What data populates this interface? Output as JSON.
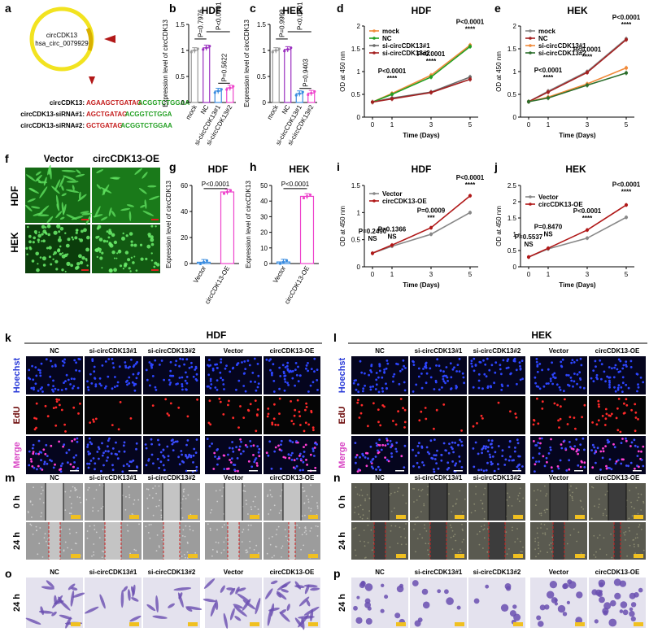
{
  "panels": {
    "a": {
      "label": "a",
      "circle_title": "circCDK13",
      "circle_id": "hsa_circ_0079929",
      "rows": [
        {
          "name": "circCDK13:",
          "seq_red": "AGAAGCTGATAG",
          "seq_green": "ACGGTCTGGAA"
        },
        {
          "name": "circCDK13-siRNA#1:",
          "seq_red": "AGCTGATAG",
          "seq_green": "ACGGTCTGGA"
        },
        {
          "name": "circCDK13-siRNA#2:",
          "seq_red": "GCTGATAG",
          "seq_green": "ACGGTCTGGAA"
        }
      ]
    },
    "b": {
      "label": "b",
      "title": "HDF",
      "ylabel": "Expression level of circCDK13",
      "pvals": [
        "P=0.7976",
        "P<0.0001",
        "P=0.5622"
      ]
    },
    "c": {
      "label": "c",
      "title": "HEK",
      "ylabel": "Expression level of circCDK13",
      "pvals": [
        "P=0.9999",
        "P<0.0001",
        "P=0.9403"
      ]
    },
    "d": {
      "label": "d",
      "title": "HDF",
      "ylabel": "OD at 450 nm",
      "xlabel": "Time (Days)",
      "annotations": [
        [
          "P<0.0001",
          "****"
        ],
        [
          "P<0.0001",
          "****"
        ],
        [
          "P<0.0001",
          "****"
        ]
      ]
    },
    "e": {
      "label": "e",
      "title": "HEK",
      "ylabel": "OD at 450 nm",
      "xlabel": "Time (Days)",
      "annotations": [
        [
          "P<0.0001",
          "****"
        ],
        [
          "P<0.0001",
          "****"
        ],
        [
          "P<0.0001",
          "****"
        ]
      ]
    },
    "f": {
      "label": "f",
      "cols": [
        "Vector",
        "circCDK13-OE"
      ],
      "rows": [
        "HDF",
        "HEK"
      ]
    },
    "g": {
      "label": "g",
      "title": "HDF",
      "ylabel": "Expression level of circCDK13",
      "pval": "P<0.0001"
    },
    "h": {
      "label": "h",
      "title": "HEK",
      "ylabel": "Expression level of circCDK13",
      "pval": "P<0.0001"
    },
    "i": {
      "label": "i",
      "title": "HDF",
      "ylabel": "OD at 450 nm",
      "xlabel": "Time (Days)",
      "annotations": [
        [
          "P=0.2490",
          "NS"
        ],
        [
          "P=0.1366",
          "NS"
        ],
        [
          "P=0.0009",
          "***"
        ],
        [
          "P<0.0001",
          "****"
        ]
      ]
    },
    "j": {
      "label": "j",
      "title": "HEK",
      "ylabel": "OD at 450 nm",
      "xlabel": "Time (Days)",
      "annotations": [
        [
          "P=0.5537",
          "NS"
        ],
        [
          "P=0.8470",
          "NS"
        ],
        [
          "P<0.0001",
          "****"
        ],
        [
          "P<0.0001",
          "****"
        ]
      ]
    },
    "k": {
      "label": "k",
      "title": "HDF"
    },
    "l": {
      "label": "l",
      "title": "HEK"
    },
    "m": {
      "label": "m"
    },
    "n": {
      "label": "n"
    },
    "o": {
      "label": "o"
    },
    "p": {
      "label": "p"
    }
  },
  "groups": [
    "NC",
    "si-circCDK13#1",
    "si-circCDK13#2",
    "Vector",
    "circCDK13-OE"
  ],
  "stain_rows": [
    "Hoechst",
    "EdU",
    "Merge"
  ],
  "time_rows": [
    "0 h",
    "24 h"
  ],
  "transwell_row": "24 h",
  "colors": {
    "mock": "#888888",
    "NC": "#a32020",
    "si1": "#f08a3a",
    "si2": "#2c6e2c",
    "red": "#c41b1b",
    "green": "#22a022",
    "pink": "#ee44cc",
    "blue": "#3b8de0"
  },
  "chart_data": [
    {
      "type": "bar",
      "panel": "b",
      "title": "HDF",
      "ylabel": "Expression level of circCDK13",
      "categories": [
        "mock",
        "NC",
        "si-circCDK13#1",
        "si-circCDK13#2"
      ],
      "values": [
        1.0,
        1.05,
        0.22,
        0.28
      ],
      "ylim": [
        0,
        1.5
      ]
    },
    {
      "type": "bar",
      "panel": "c",
      "title": "HEK",
      "ylabel": "Expression level of circCDK13",
      "categories": [
        "mock",
        "NC",
        "si-circCDK13#1",
        "si-circCDK13#2"
      ],
      "values": [
        1.0,
        1.02,
        0.17,
        0.18
      ],
      "ylim": [
        0,
        1.5
      ]
    },
    {
      "type": "line",
      "panel": "d",
      "title": "HDF",
      "xlabel": "Time (Days)",
      "ylabel": "OD at 450 nm",
      "x": [
        0,
        1,
        3,
        5
      ],
      "ylim": [
        0,
        2.0
      ],
      "series": [
        {
          "name": "mock",
          "values": [
            0.33,
            0.52,
            0.92,
            1.58
          ]
        },
        {
          "name": "NC",
          "values": [
            0.33,
            0.5,
            0.88,
            1.55
          ]
        },
        {
          "name": "si-circCDK13#1",
          "values": [
            0.33,
            0.42,
            0.55,
            0.88
          ]
        },
        {
          "name": "si-circCDK13#2",
          "values": [
            0.33,
            0.4,
            0.54,
            0.83
          ]
        }
      ]
    },
    {
      "type": "line",
      "panel": "e",
      "title": "HEK",
      "xlabel": "Time (Days)",
      "ylabel": "OD at 450 nm",
      "x": [
        0,
        1,
        3,
        5
      ],
      "ylim": [
        0,
        2.0
      ],
      "series": [
        {
          "name": "mock",
          "values": [
            0.34,
            0.57,
            1.0,
            1.72
          ]
        },
        {
          "name": "NC",
          "values": [
            0.34,
            0.55,
            0.98,
            1.7
          ]
        },
        {
          "name": "si-circCDK13#1",
          "values": [
            0.34,
            0.44,
            0.73,
            1.08
          ]
        },
        {
          "name": "si-circCDK13#2",
          "values": [
            0.34,
            0.42,
            0.7,
            0.97
          ]
        }
      ]
    },
    {
      "type": "bar",
      "panel": "g",
      "title": "HDF",
      "ylabel": "Expression level of circCDK13",
      "categories": [
        "Vector",
        "circCDK13-OE"
      ],
      "values": [
        1.0,
        55.0
      ],
      "ylim": [
        0,
        60
      ]
    },
    {
      "type": "bar",
      "panel": "h",
      "title": "HEK",
      "ylabel": "Expression level of circCDK13",
      "categories": [
        "Vector",
        "circCDK13-OE"
      ],
      "values": [
        1.0,
        43.0
      ],
      "ylim": [
        0,
        50
      ]
    },
    {
      "type": "line",
      "panel": "i",
      "title": "HDF",
      "xlabel": "Time (Days)",
      "ylabel": "OD at 450 nm",
      "x": [
        0,
        1,
        3,
        5
      ],
      "ylim": [
        0,
        1.5
      ],
      "series": [
        {
          "name": "Vector",
          "values": [
            0.25,
            0.38,
            0.6,
            1.0
          ]
        },
        {
          "name": "circCDK13-OE",
          "values": [
            0.25,
            0.4,
            0.72,
            1.31
          ]
        }
      ]
    },
    {
      "type": "line",
      "panel": "j",
      "title": "HEK",
      "xlabel": "Time (Days)",
      "ylabel": "OD at 450 nm",
      "x": [
        0,
        1,
        3,
        5
      ],
      "ylim": [
        0,
        2.5
      ],
      "series": [
        {
          "name": "Vector",
          "values": [
            0.3,
            0.55,
            0.88,
            1.52
          ]
        },
        {
          "name": "circCDK13-OE",
          "values": [
            0.3,
            0.57,
            1.13,
            1.9
          ]
        }
      ]
    }
  ]
}
